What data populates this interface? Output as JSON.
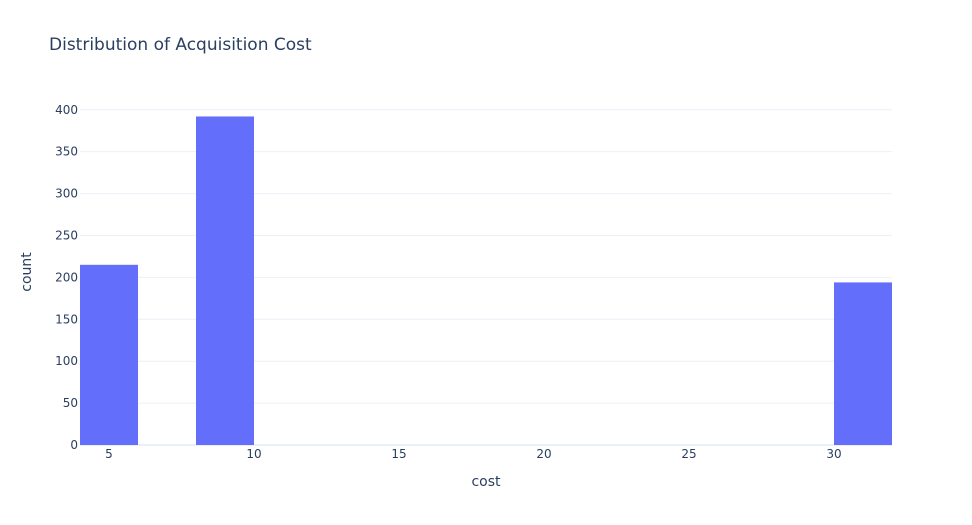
{
  "chart_data": {
    "type": "bar",
    "title": "Distribution of Acquisition Cost",
    "xlabel": "cost",
    "ylabel": "count",
    "bar_color": "#636efa",
    "xlim": [
      4,
      32
    ],
    "ylim": [
      0,
      420
    ],
    "xticks": [
      5,
      10,
      15,
      20,
      25,
      30
    ],
    "yticks": [
      0,
      50,
      100,
      150,
      200,
      250,
      300,
      350,
      400
    ],
    "bins": [
      {
        "x0": 4,
        "x1": 6,
        "value": 215
      },
      {
        "x0": 8,
        "x1": 10,
        "value": 392
      },
      {
        "x0": 30,
        "x1": 32,
        "value": 194
      }
    ],
    "grid": true,
    "legend": "none"
  }
}
